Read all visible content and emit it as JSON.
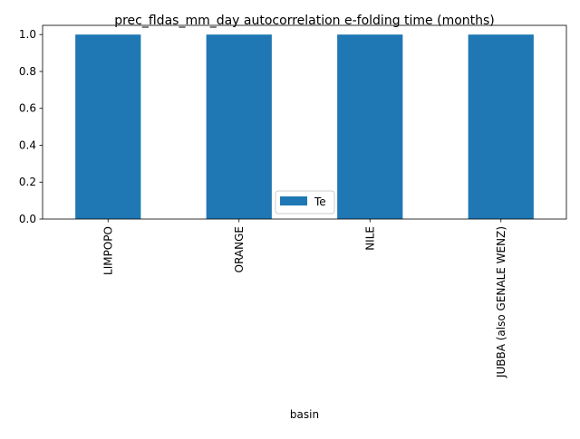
{
  "chart_data": {
    "type": "bar",
    "title": "prec_fldas_mm_day autocorrelation e-folding time (months)",
    "xlabel": "basin",
    "ylabel": "",
    "categories": [
      "LIMPOPO",
      "ORANGE",
      "NILE",
      "JUBBA (also GENALE WENZ)"
    ],
    "series": [
      {
        "name": "Te",
        "values": [
          1.0,
          1.0,
          1.0,
          1.0
        ],
        "color": "#1f77b4"
      }
    ],
    "ylim": [
      0,
      1.05
    ],
    "yticks": [
      "0.0",
      "0.2",
      "0.4",
      "0.6",
      "0.8",
      "1.0"
    ],
    "grid": false,
    "legend_position": "bottom-center"
  }
}
